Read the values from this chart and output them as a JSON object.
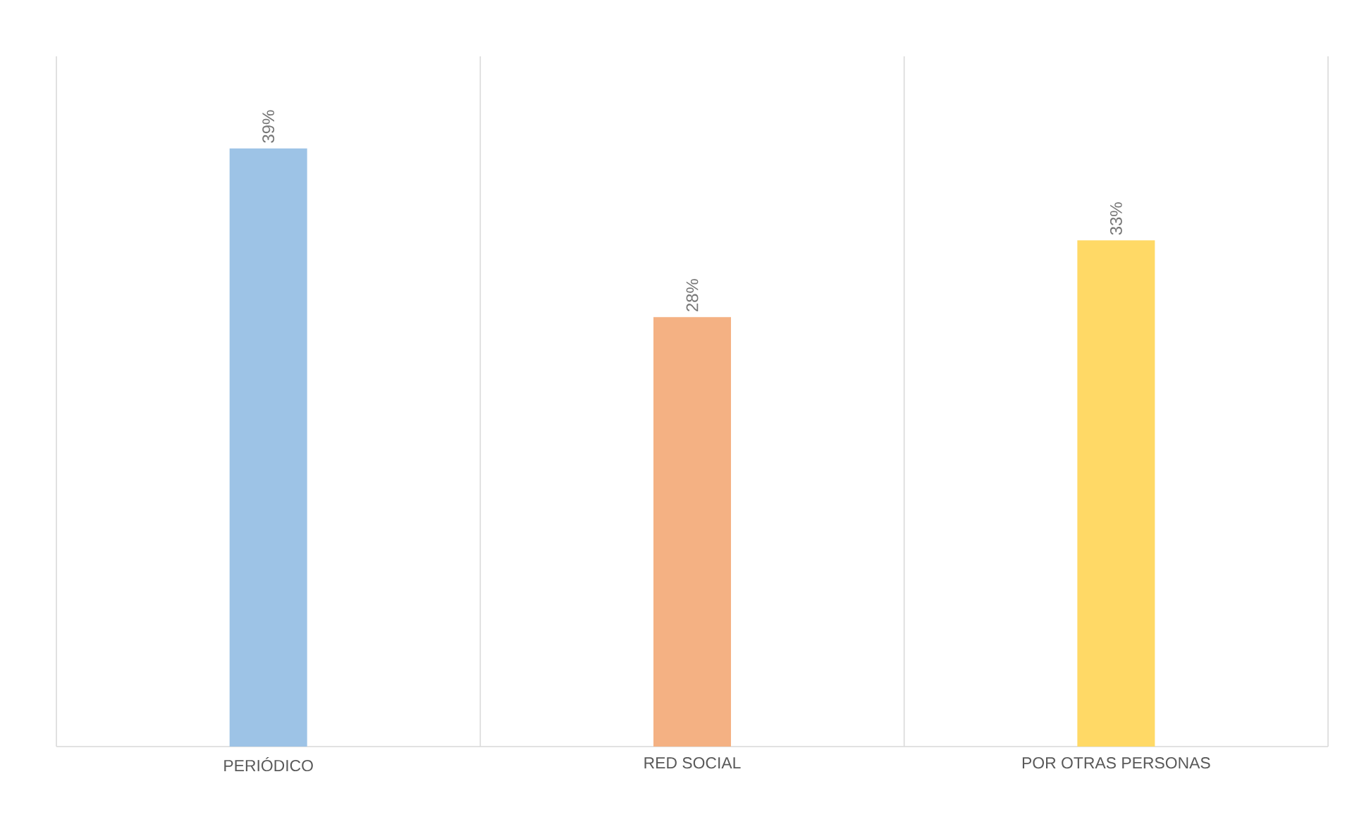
{
  "chart_data": {
    "type": "bar",
    "categories": [
      "PERIÓDICO",
      "RED SOCIAL",
      "POR OTRAS PERSONAS"
    ],
    "values": [
      39,
      28,
      33
    ],
    "colors": [
      "#9dc3e6",
      "#f4b183",
      "#ffd966"
    ],
    "value_labels": [
      "39%",
      "28%",
      "33%"
    ],
    "ylim": [
      0,
      45
    ],
    "grid": "x"
  }
}
